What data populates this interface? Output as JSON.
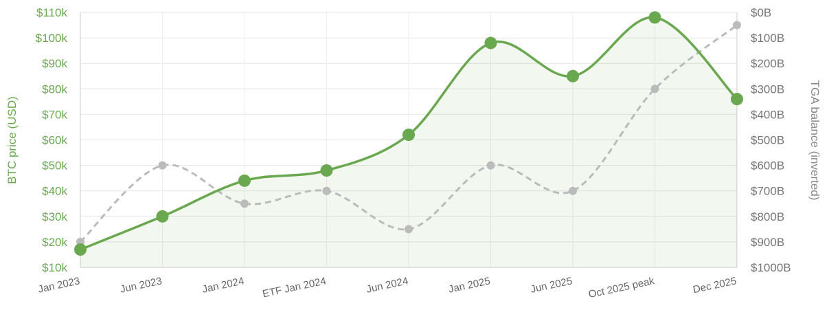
{
  "chart_data": {
    "type": "line",
    "categories": [
      "Jan 2023",
      "Jun 2023",
      "Jan 2024",
      "ETF Jan 2024",
      "Jun 2024",
      "Jan 2025",
      "Jun 2025",
      "Oct 2025 peak",
      "Dec 2025"
    ],
    "series": [
      {
        "values": [
          17000,
          30000,
          44000,
          48000,
          62000,
          98000,
          85000,
          108000,
          76000
        ],
        "axis": "left",
        "style": "solid-filled",
        "color": "#6aa84f"
      },
      {
        "values": [
          900,
          600,
          750,
          700,
          850,
          600,
          700,
          300,
          50
        ],
        "axis": "right",
        "style": "dashed",
        "color": "#bbbbbb"
      }
    ],
    "y_left": {
      "label": "BTC price (USD)",
      "range": [
        10000,
        110000
      ],
      "ticks": [
        "$10k",
        "$20k",
        "$30k",
        "$40k",
        "$50k",
        "$60k",
        "$70k",
        "$80k",
        "$90k",
        "$100k",
        "$110k"
      ]
    },
    "y_right": {
      "label": "TGA balance (inverted)",
      "range": [
        0,
        1000
      ],
      "inverted": true,
      "ticks": [
        "$0B",
        "$100B",
        "$200B",
        "$300B",
        "$400B",
        "$500B",
        "$600B",
        "$700B",
        "$800B",
        "$900B",
        "$1000B"
      ]
    },
    "grid": true,
    "legend": "none"
  }
}
